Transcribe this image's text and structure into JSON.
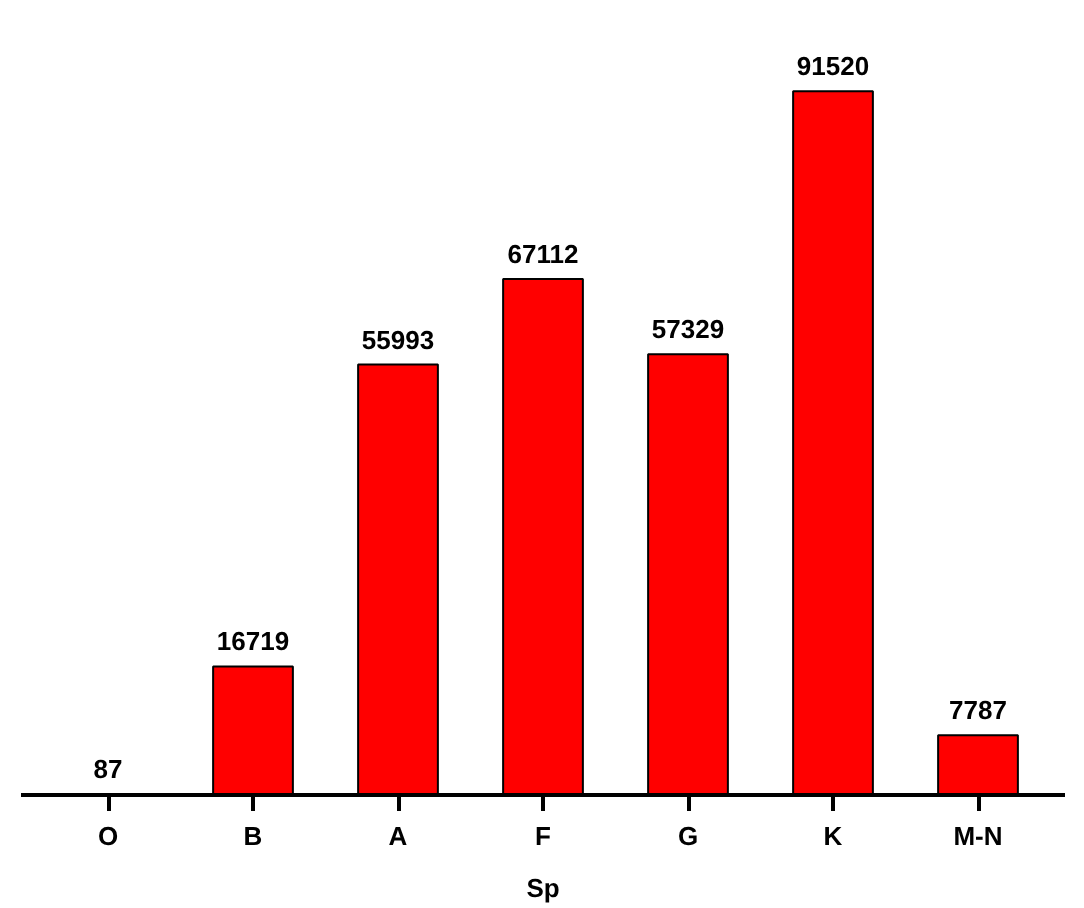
{
  "chart_data": {
    "type": "bar",
    "xlabel": "Sp",
    "categories": [
      "O",
      "B",
      "A",
      "F",
      "G",
      "K",
      "M-N"
    ],
    "values": [
      87,
      16719,
      55993,
      67112,
      57329,
      91520,
      7787
    ],
    "color": "#ff0000",
    "data_labels": true,
    "grid": false
  }
}
